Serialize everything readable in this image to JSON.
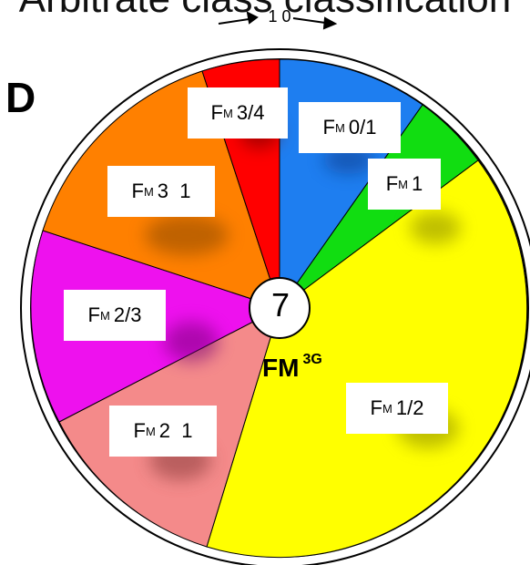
{
  "header_partial_text": "Arbitrate class classification",
  "panel_letter": "D",
  "top_marker": "1 0",
  "center": {
    "number": "7",
    "label": "FM",
    "label_sup": "3G"
  },
  "label_prefix": "F",
  "label_sub": "M",
  "segments": [
    {
      "label": "0/1",
      "color": "#1e7ef0"
    },
    {
      "label": "1",
      "color": "#11dd11"
    },
    {
      "label": "1/2",
      "color": "#ffff00"
    },
    {
      "label": "2  1",
      "color": "#f48a8a"
    },
    {
      "label": "2/3",
      "color": "#ee11ee"
    },
    {
      "label": "3  1",
      "color": "#ff8000"
    },
    {
      "label": "3/4",
      "color": "#ff0000"
    }
  ]
}
